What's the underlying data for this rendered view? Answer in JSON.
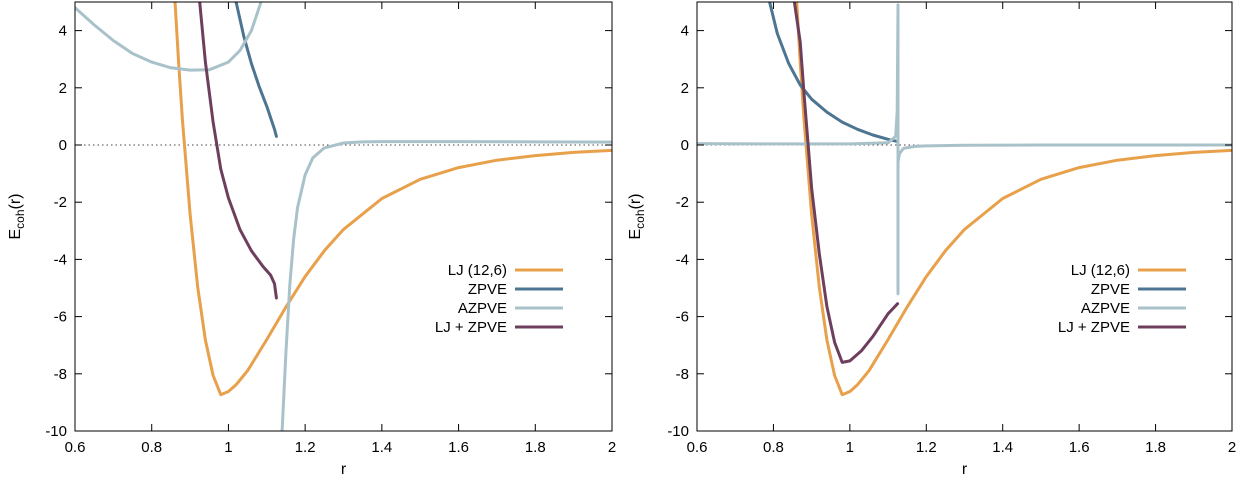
{
  "chart_data": [
    {
      "type": "line",
      "xlabel": "r",
      "ylabel": "E_coh(r)",
      "ylabel_main": "E",
      "ylabel_sub": "coh",
      "ylabel_tail": "(r)",
      "xlim": [
        0.6,
        2.0
      ],
      "ylim": [
        -10,
        5
      ],
      "xticks": [
        0.6,
        0.8,
        1,
        1.2,
        1.4,
        1.6,
        1.8,
        2
      ],
      "xtick_labels": [
        "0.6",
        "0.8",
        "1",
        "1.2",
        "1.4",
        "1.6",
        "1.8",
        "2"
      ],
      "yticks": [
        -10,
        -8,
        -6,
        -4,
        -2,
        0,
        2,
        4
      ],
      "ytick_labels": [
        "-10",
        "-8",
        "-6",
        "-4",
        "-2",
        "0",
        "2",
        "4"
      ],
      "zero_line": true,
      "grid": false,
      "legend_position": "center-right",
      "series": [
        {
          "name": "LJ (12,6)",
          "color": "#E8A04A",
          "x": [
            0.86,
            0.87,
            0.88,
            0.9,
            0.92,
            0.94,
            0.96,
            0.98,
            1.0,
            1.02,
            1.05,
            1.1,
            1.15,
            1.2,
            1.25,
            1.3,
            1.4,
            1.5,
            1.6,
            1.7,
            1.8,
            1.9,
            2.0
          ],
          "y": [
            5.2,
            2.9,
            0.89,
            -2.42,
            -4.97,
            -6.82,
            -8.06,
            -8.73,
            -8.62,
            -8.38,
            -7.89,
            -6.8,
            -5.66,
            -4.6,
            -3.7,
            -2.95,
            -1.87,
            -1.2,
            -0.79,
            -0.53,
            -0.37,
            -0.26,
            -0.19
          ]
        },
        {
          "name": "ZPVE",
          "color": "#4D7592",
          "x": [
            1.02,
            1.04,
            1.06,
            1.08,
            1.1,
            1.12,
            1.125
          ],
          "y": [
            5.0,
            3.8,
            2.85,
            2.05,
            1.35,
            0.55,
            0.3
          ]
        },
        {
          "name": "AZPVE",
          "color": "#A9C2CA",
          "x": [
            0.6,
            0.65,
            0.7,
            0.75,
            0.8,
            0.85,
            0.9,
            0.95,
            1.0,
            1.03,
            1.06,
            1.075,
            1.085
          ],
          "y": [
            4.8,
            4.2,
            3.65,
            3.2,
            2.9,
            2.7,
            2.62,
            2.63,
            2.9,
            3.3,
            4.0,
            4.6,
            5.0
          ]
        },
        {
          "name": "AZPVE",
          "color": "#A9C2CA",
          "x": [
            1.14,
            1.15,
            1.16,
            1.17,
            1.18,
            1.2,
            1.22,
            1.25,
            1.3,
            1.35,
            1.4,
            1.5,
            1.6,
            1.8,
            2.0
          ],
          "y": [
            -10,
            -7.2,
            -4.9,
            -3.3,
            -2.2,
            -1.05,
            -0.45,
            -0.1,
            0.07,
            0.11,
            0.12,
            0.12,
            0.12,
            0.11,
            0.1
          ]
        },
        {
          "name": "LJ + ZPVE",
          "color": "#6E3F5D",
          "x": [
            0.925,
            0.94,
            0.96,
            0.98,
            1.0,
            1.03,
            1.06,
            1.09,
            1.11,
            1.12,
            1.125
          ],
          "y": [
            5.0,
            2.9,
            0.8,
            -0.85,
            -1.85,
            -2.95,
            -3.7,
            -4.25,
            -4.55,
            -4.85,
            -5.35
          ]
        }
      ],
      "legend": [
        {
          "name": "LJ (12,6)",
          "color": "#E8A04A"
        },
        {
          "name": "ZPVE",
          "color": "#4D7592"
        },
        {
          "name": "AZPVE",
          "color": "#A9C2CA"
        },
        {
          "name": "LJ + ZPVE",
          "color": "#6E3F5D"
        }
      ]
    },
    {
      "type": "line",
      "xlabel": "r",
      "ylabel": "E_coh(r)",
      "ylabel_main": "E",
      "ylabel_sub": "coh",
      "ylabel_tail": "(r)",
      "xlim": [
        0.6,
        2.0
      ],
      "ylim": [
        -10,
        5
      ],
      "xticks": [
        0.6,
        0.8,
        1,
        1.2,
        1.4,
        1.6,
        1.8,
        2
      ],
      "xtick_labels": [
        "0.6",
        "0.8",
        "1",
        "1.2",
        "1.4",
        "1.6",
        "1.8",
        "2"
      ],
      "yticks": [
        -10,
        -8,
        -6,
        -4,
        -2,
        0,
        2,
        4
      ],
      "ytick_labels": [
        "-10",
        "-8",
        "-6",
        "-4",
        "-2",
        "0",
        "2",
        "4"
      ],
      "zero_line": true,
      "grid": false,
      "legend_position": "center-right",
      "series": [
        {
          "name": "LJ (12,6)",
          "color": "#E8A04A",
          "x": [
            0.86,
            0.87,
            0.88,
            0.9,
            0.92,
            0.94,
            0.96,
            0.98,
            1.0,
            1.02,
            1.05,
            1.1,
            1.15,
            1.2,
            1.25,
            1.3,
            1.4,
            1.5,
            1.6,
            1.7,
            1.8,
            1.9,
            2.0
          ],
          "y": [
            5.2,
            2.9,
            0.89,
            -2.42,
            -4.97,
            -6.82,
            -8.06,
            -8.73,
            -8.62,
            -8.38,
            -7.89,
            -6.8,
            -5.66,
            -4.6,
            -3.7,
            -2.95,
            -1.87,
            -1.2,
            -0.79,
            -0.53,
            -0.37,
            -0.26,
            -0.19
          ]
        },
        {
          "name": "ZPVE",
          "color": "#4D7592",
          "x": [
            0.79,
            0.81,
            0.84,
            0.87,
            0.9,
            0.94,
            0.98,
            1.02,
            1.06,
            1.1,
            1.125
          ],
          "y": [
            5.0,
            3.9,
            2.85,
            2.1,
            1.6,
            1.15,
            0.8,
            0.55,
            0.35,
            0.2,
            0.12
          ]
        },
        {
          "name": "AZPVE",
          "color": "#A9C2CA",
          "x": [
            0.6,
            0.8,
            1.0,
            1.1,
            1.12,
            1.124,
            1.126,
            1.126,
            1.126
          ],
          "y": [
            0.05,
            0.04,
            0.04,
            0.08,
            0.3,
            1.2,
            4.9,
            -5.2,
            -0.6
          ]
        },
        {
          "name": "AZPVE",
          "color": "#A9C2CA",
          "x": [
            1.126,
            1.13,
            1.14,
            1.17,
            1.2,
            1.3,
            1.5,
            2.0
          ],
          "y": [
            -0.6,
            -0.3,
            -0.12,
            -0.05,
            -0.03,
            -0.01,
            0.0,
            0.0
          ]
        },
        {
          "name": "LJ + ZPVE",
          "color": "#6E3F5D",
          "x": [
            0.855,
            0.87,
            0.88,
            0.9,
            0.92,
            0.94,
            0.96,
            0.98,
            1.0,
            1.03,
            1.06,
            1.1,
            1.125
          ],
          "y": [
            5.0,
            3.6,
            1.8,
            -1.5,
            -3.8,
            -5.65,
            -6.9,
            -7.6,
            -7.55,
            -7.2,
            -6.7,
            -5.9,
            -5.55
          ]
        }
      ],
      "legend": [
        {
          "name": "LJ (12,6)",
          "color": "#E8A04A"
        },
        {
          "name": "ZPVE",
          "color": "#4D7592"
        },
        {
          "name": "AZPVE",
          "color": "#A9C2CA"
        },
        {
          "name": "LJ + ZPVE",
          "color": "#6E3F5D"
        }
      ]
    }
  ]
}
